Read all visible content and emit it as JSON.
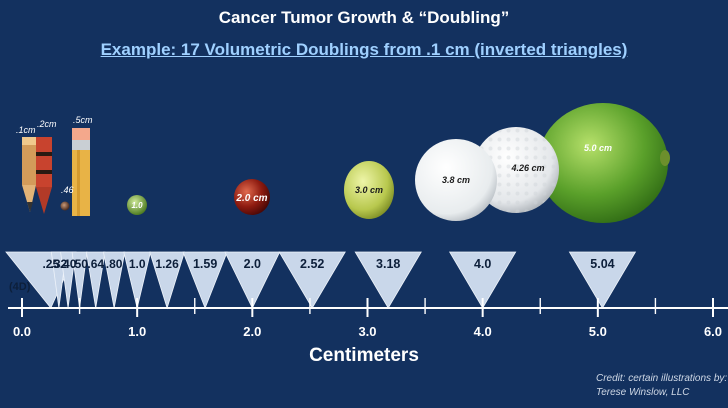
{
  "title": "Cancer Tumor Growth & “Doubling”",
  "subtitle": "Example: 17 Volumetric Doublings from .1 cm (inverted triangles)",
  "axis": {
    "label": "Centimeters",
    "ticks": [
      "0.0",
      "1.0",
      "2.0",
      "3.0",
      "4.0",
      "5.0",
      "6.0"
    ]
  },
  "four_d_label": "(4D)",
  "triangles": [
    {
      "label": ".25",
      "value": 0.25
    },
    {
      "label": ".32",
      "value": 0.32
    },
    {
      "label": ".40",
      "value": 0.4
    },
    {
      "label": ".50",
      "value": 0.5
    },
    {
      "label": ".64",
      "value": 0.64
    },
    {
      "label": ".80",
      "value": 0.8
    },
    {
      "label": "1.0",
      "value": 1.0
    },
    {
      "label": "1.26",
      "value": 1.26
    },
    {
      "label": "1.59",
      "value": 1.59
    },
    {
      "label": "2.0",
      "value": 2.0
    },
    {
      "label": "2.52",
      "value": 2.52
    },
    {
      "label": "3.18",
      "value": 3.18
    },
    {
      "label": "4.0",
      "value": 4.0
    },
    {
      "label": "5.04",
      "value": 5.04
    }
  ],
  "objects": [
    {
      "label": ".1cm",
      "name": "pencil-point",
      "value": 0.1
    },
    {
      "label": ".2cm",
      "name": "crayon-tip",
      "value": 0.2
    },
    {
      "label": ".46",
      "name": "peppercorn",
      "value": 0.46
    },
    {
      "label": ".5cm",
      "name": "pencil-eraser",
      "value": 0.5
    },
    {
      "label": "1.0",
      "name": "pea",
      "value": 1.0
    },
    {
      "label": "2.0 cm",
      "name": "cherry",
      "value": 2.0
    },
    {
      "label": "3.0 cm",
      "name": "grape",
      "value": 3.0
    },
    {
      "label": "3.8 cm",
      "name": "ping-pong-ball",
      "value": 3.8
    },
    {
      "label": "4.26 cm",
      "name": "golf-ball",
      "value": 4.26
    },
    {
      "label": "5.0 cm",
      "name": "lime",
      "value": 5.0
    }
  ],
  "credit": "Credit: certain illustrations by:\nTerese Winslow, LLC",
  "colors": {
    "background": "#13315f",
    "subtitle": "#9fd0ff",
    "triangle_fill": "#c9d7ea",
    "axis": "#ffffff"
  }
}
